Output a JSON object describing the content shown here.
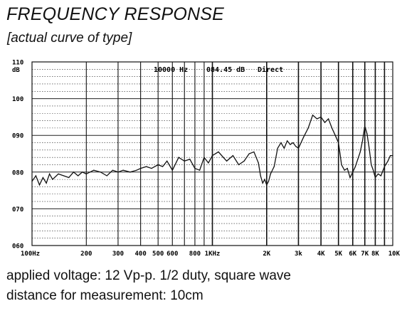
{
  "header": {
    "title": "FREQUENCY RESPONSE",
    "subtitle": "[actual curve of type]"
  },
  "notes": {
    "line1": "applied voltage: 12 Vp-p. 1/2 duty, square wave",
    "line2": "distance for measurement: 10cm"
  },
  "chart_data": {
    "type": "line",
    "title": "",
    "xlabel": "",
    "ylabel": "dB",
    "x_scale": "log",
    "xlim": [
      100,
      10000
    ],
    "ylim": [
      60,
      110
    ],
    "y_ticks": [
      60,
      70,
      80,
      90,
      100,
      110
    ],
    "y_tick_labels": [
      "060",
      "070",
      "080",
      "090",
      "100",
      "110"
    ],
    "x_ticks": [
      100,
      200,
      300,
      400,
      500,
      600,
      800,
      1000,
      2000,
      3000,
      4000,
      5000,
      6000,
      7000,
      8000,
      10000
    ],
    "x_tick_labels": [
      "100Hz",
      "200",
      "300",
      "400",
      "500",
      "600",
      "800",
      "1KHz",
      "2K",
      "3k",
      "4K",
      "5K",
      "6K",
      "7K",
      "8K",
      "10K"
    ],
    "grid": true,
    "readout": {
      "freq": "10000 Hz",
      "level": "084.45 dB",
      "mode": "Direct"
    },
    "series": [
      {
        "x": [
          100,
          105,
          110,
          115,
          120,
          125,
          130,
          140,
          150,
          160,
          170,
          180,
          190,
          200,
          220,
          240,
          260,
          280,
          300,
          320,
          350,
          380,
          400,
          430,
          460,
          500,
          530,
          560,
          600,
          650,
          700,
          750,
          800,
          850,
          900,
          950,
          1000,
          1080,
          1150,
          1200,
          1300,
          1400,
          1500,
          1600,
          1700,
          1800,
          1850,
          1900,
          1950,
          2000,
          2050,
          2100,
          2200,
          2300,
          2400,
          2500,
          2600,
          2700,
          2800,
          2900,
          3000,
          3200,
          3400,
          3600,
          3800,
          4000,
          4200,
          4400,
          4600,
          4800,
          5000,
          5100,
          5200,
          5400,
          5600,
          5800,
          6000,
          6200,
          6400,
          6600,
          6800,
          7000,
          7200,
          7400,
          7600,
          7800,
          8000,
          8300,
          8600,
          9000,
          9400,
          9700,
          10000
        ],
        "y": [
          77.5,
          79,
          76.5,
          78.5,
          77,
          79.5,
          78,
          79.5,
          79,
          78.5,
          80,
          79,
          80,
          79.5,
          80.5,
          80,
          79,
          80.5,
          80,
          80.5,
          80,
          80.5,
          81,
          81.5,
          81,
          82,
          81.5,
          83,
          80.5,
          84,
          83,
          83.5,
          81,
          80.5,
          84,
          82.5,
          84.5,
          85.5,
          84,
          83,
          84.5,
          82,
          83,
          85,
          85.5,
          82.5,
          79,
          77,
          78,
          76.5,
          77.5,
          79.5,
          81.5,
          86.5,
          88,
          86.5,
          88.5,
          87.5,
          88,
          87,
          86.5,
          89.5,
          92,
          95.5,
          94.5,
          95,
          93.5,
          94.5,
          92,
          90,
          88,
          85,
          82,
          80.5,
          81,
          78.5,
          80,
          81.5,
          83.5,
          85.5,
          88.5,
          92.5,
          90.5,
          86.5,
          82,
          80.5,
          78.5,
          79.5,
          79,
          81.5,
          83,
          84.5,
          84.5
        ]
      }
    ]
  }
}
